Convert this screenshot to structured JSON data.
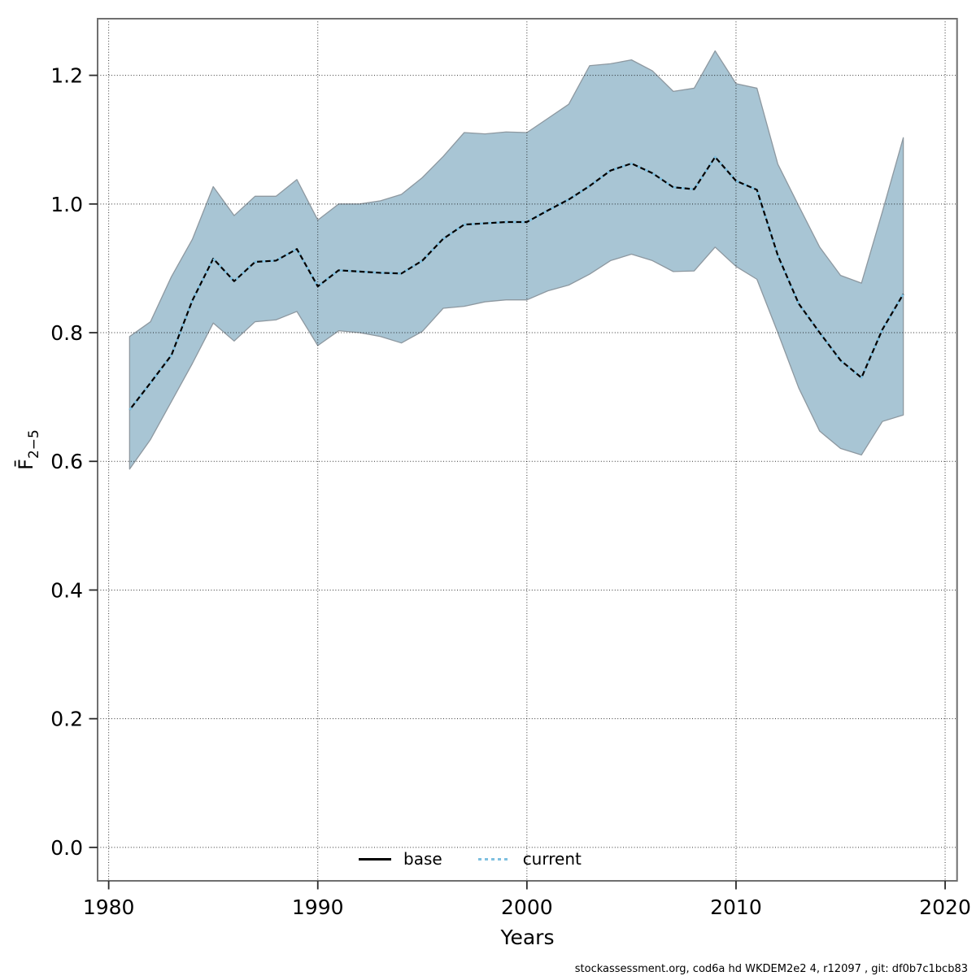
{
  "caption": "stockassessment.org, cod6a hd WKDEM2e2 4, r12097 , git: df0b7c1bcb83",
  "colors": {
    "band_fill": "#a8c5d4",
    "band_edge": "#8d98a0",
    "base_line": "#000000",
    "current_line": "#7fc0e0",
    "plot_border": "#6f6f6f",
    "grid": "#000000",
    "background": "#ffffff"
  },
  "chart_data": {
    "type": "line",
    "title": "",
    "xlabel": "Years",
    "ylabel": "F̄2−5",
    "ylabel_main": "F̄",
    "ylabel_sub": "2−5",
    "grid": {
      "style": "dotted",
      "color": "#000000",
      "on": true
    },
    "legend": {
      "position": "bottom-center-inside",
      "entries": [
        {
          "label": "base",
          "line": "solid",
          "color": "#000000"
        },
        {
          "label": "current",
          "line": "dotted",
          "color": "#7fc0e0"
        }
      ]
    },
    "x_ticks": [
      1980,
      1990,
      2000,
      2010,
      2020
    ],
    "y_ticks": [
      0.0,
      0.2,
      0.4,
      0.6,
      0.8,
      1.0,
      1.2
    ],
    "xlim": [
      1979.47,
      2020.57
    ],
    "ylim": [
      -0.052,
      1.288
    ],
    "x": [
      1981,
      1982,
      1983,
      1984,
      1985,
      1986,
      1987,
      1988,
      1989,
      1990,
      1991,
      1992,
      1993,
      1994,
      1995,
      1996,
      1997,
      1998,
      1999,
      2000,
      2001,
      2002,
      2003,
      2004,
      2005,
      2006,
      2007,
      2008,
      2009,
      2010,
      2011,
      2012,
      2013,
      2014,
      2015,
      2016,
      2017,
      2018
    ],
    "series": [
      {
        "name": "base",
        "color": "#000000",
        "style": "solid",
        "values": [
          0.68,
          0.722,
          0.765,
          0.85,
          0.915,
          0.88,
          0.91,
          0.912,
          0.93,
          0.872,
          0.897,
          0.895,
          0.893,
          0.892,
          0.912,
          0.946,
          0.968,
          0.97,
          0.972,
          0.972,
          0.99,
          1.007,
          1.028,
          1.052,
          1.063,
          1.048,
          1.026,
          1.023,
          1.073,
          1.036,
          1.022,
          0.92,
          0.845,
          0.8,
          0.757,
          0.73,
          0.805,
          0.86
        ]
      },
      {
        "name": "current",
        "color": "#7fc0e0",
        "style": "dotted",
        "values": [
          0.68,
          0.722,
          0.765,
          0.85,
          0.915,
          0.88,
          0.91,
          0.912,
          0.93,
          0.872,
          0.897,
          0.895,
          0.893,
          0.892,
          0.912,
          0.946,
          0.968,
          0.97,
          0.972,
          0.972,
          0.99,
          1.007,
          1.028,
          1.052,
          1.063,
          1.048,
          1.026,
          1.023,
          1.073,
          1.036,
          1.022,
          0.92,
          0.845,
          0.8,
          0.757,
          0.73,
          0.805,
          0.86
        ]
      }
    ],
    "band": {
      "name": "confidence-interval",
      "fill": "#a8c5d4",
      "edge": "#8d98a0",
      "lower": [
        0.588,
        0.634,
        0.693,
        0.752,
        0.815,
        0.787,
        0.817,
        0.82,
        0.833,
        0.78,
        0.803,
        0.8,
        0.794,
        0.784,
        0.802,
        0.838,
        0.841,
        0.848,
        0.851,
        0.851,
        0.865,
        0.874,
        0.891,
        0.912,
        0.922,
        0.912,
        0.895,
        0.896,
        0.933,
        0.903,
        0.883,
        0.8,
        0.714,
        0.647,
        0.62,
        0.61,
        0.662,
        0.672
      ],
      "upper": [
        0.794,
        0.817,
        0.887,
        0.945,
        1.027,
        0.982,
        1.012,
        1.012,
        1.038,
        0.975,
        1.0,
        1.0,
        1.005,
        1.015,
        1.041,
        1.074,
        1.111,
        1.109,
        1.112,
        1.111,
        1.133,
        1.155,
        1.215,
        1.218,
        1.224,
        1.207,
        1.175,
        1.18,
        1.238,
        1.187,
        1.18,
        1.062,
        0.997,
        0.933,
        0.889,
        0.877,
        0.988,
        1.103
      ]
    }
  }
}
